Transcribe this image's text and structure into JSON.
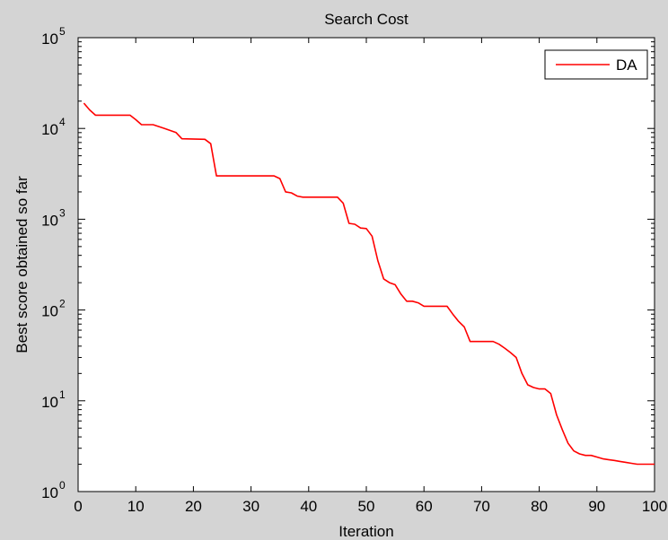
{
  "chart_data": {
    "type": "line",
    "title": "Search Cost",
    "xlabel": "Iteration",
    "ylabel": "Best score obtained so far",
    "xlim": [
      0,
      100
    ],
    "ylim": [
      1,
      100000
    ],
    "yscale": "log",
    "grid": false,
    "legend_position": "top-right",
    "x_ticks": [
      0,
      10,
      20,
      30,
      40,
      50,
      60,
      70,
      80,
      90,
      100
    ],
    "y_ticks": [
      {
        "base": "10",
        "exp": "0",
        "value": 1
      },
      {
        "base": "10",
        "exp": "1",
        "value": 10
      },
      {
        "base": "10",
        "exp": "2",
        "value": 100
      },
      {
        "base": "10",
        "exp": "3",
        "value": 1000
      },
      {
        "base": "10",
        "exp": "4",
        "value": 10000
      },
      {
        "base": "10",
        "exp": "5",
        "value": 100000
      }
    ],
    "series": [
      {
        "name": "DA",
        "color": "#ff0000",
        "x": [
          1,
          2,
          3,
          9,
          10,
          11,
          12,
          13,
          14,
          15,
          16,
          17,
          18,
          22,
          23,
          24,
          30,
          34,
          35,
          36,
          37,
          38,
          39,
          45,
          46,
          47,
          48,
          49,
          50,
          51,
          52,
          53,
          54,
          55,
          56,
          57,
          58,
          59,
          60,
          64,
          65,
          66,
          67,
          68,
          69,
          72,
          73,
          74,
          75,
          76,
          77,
          78,
          79,
          80,
          81,
          82,
          83,
          84,
          85,
          86,
          87,
          88,
          89,
          90,
          91,
          92,
          93,
          94,
          95,
          96,
          97,
          98,
          99,
          100
        ],
        "values": [
          19000,
          16000,
          14000,
          14000,
          12500,
          11000,
          11000,
          11000,
          10500,
          10000,
          9500,
          9000,
          7700,
          7600,
          6800,
          3000,
          3000,
          3000,
          2800,
          2000,
          1950,
          1800,
          1750,
          1750,
          1500,
          900,
          880,
          800,
          790,
          650,
          350,
          220,
          200,
          190,
          150,
          125,
          125,
          120,
          110,
          110,
          90,
          75,
          65,
          45,
          45,
          45,
          42,
          38,
          34,
          30,
          20,
          15,
          14,
          13.5,
          13.5,
          12,
          7,
          4.8,
          3.4,
          2.8,
          2.6,
          2.5,
          2.5,
          2.4,
          2.3,
          2.25,
          2.2,
          2.15,
          2.1,
          2.05,
          2.0,
          2.0,
          2.0,
          2.0
        ]
      }
    ]
  }
}
